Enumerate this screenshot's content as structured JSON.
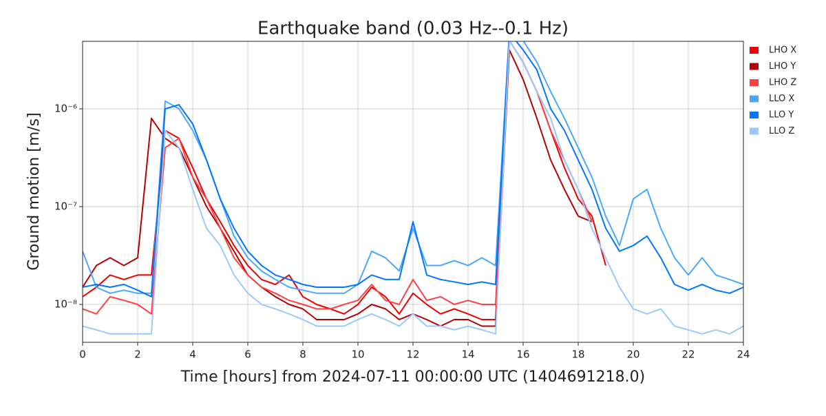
{
  "chart_data": {
    "type": "line",
    "title": "Earthquake band (0.03 Hz--0.1 Hz)",
    "x_label": "Time [hours] from 2024-07-11 00:00:00 UTC (1404691218.0)",
    "y_label": "Ground motion [m/s]",
    "log_y": true,
    "grid": true,
    "legend": "outside-right",
    "xlim": [
      0,
      24
    ],
    "xticks": [
      0,
      2,
      4,
      6,
      8,
      10,
      12,
      14,
      16,
      18,
      20,
      22,
      24
    ],
    "ylim": [
      4.1e-09,
      4.9e-06
    ],
    "yticks": [
      {
        "value": 1e-08,
        "label": "10⁻⁸"
      },
      {
        "value": 1e-07,
        "label": "10⁻⁷"
      },
      {
        "value": 1e-06,
        "label": "10⁻⁶"
      }
    ],
    "x": [
      0,
      0.5,
      1,
      1.5,
      2,
      2.5,
      3,
      3.5,
      4,
      4.5,
      5,
      5.5,
      6,
      6.5,
      7,
      7.5,
      8,
      8.5,
      9,
      9.5,
      10,
      10.5,
      11,
      11.5,
      12,
      12.5,
      13,
      13.5,
      14,
      14.5,
      15,
      15.5,
      16,
      16.5,
      17,
      17.5,
      18,
      18.5,
      19,
      19.5,
      20,
      20.5,
      21,
      21.5,
      22,
      22.5,
      23,
      23.5,
      24
    ],
    "series": [
      {
        "name": "LHO X",
        "color": "#ee0000",
        "values": [
          1.2e-08,
          1.5e-08,
          2e-08,
          1.8e-08,
          2e-08,
          2e-08,
          6e-07,
          5e-07,
          2.5e-07,
          1.2e-07,
          7e-08,
          4e-08,
          2.5e-08,
          1.8e-08,
          1.6e-08,
          2e-08,
          1.2e-08,
          1e-08,
          9e-09,
          8e-09,
          1e-08,
          1.5e-08,
          1.2e-08,
          8e-09,
          1.3e-08,
          1e-08,
          8e-09,
          9e-09,
          8e-09,
          7e-09,
          7e-09,
          5e-06,
          3e-06,
          1.5e-06,
          6e-07,
          2.5e-07,
          1.2e-07,
          8e-08,
          2.5e-08,
          null,
          null,
          null,
          null,
          null,
          null,
          null,
          null,
          null,
          null
        ]
      },
      {
        "name": "LHO Y",
        "color": "#b30000",
        "values": [
          1.5e-08,
          2.5e-08,
          3e-08,
          2.5e-08,
          3e-08,
          8e-07,
          5e-07,
          4e-07,
          2e-07,
          1e-07,
          6e-08,
          3.5e-08,
          2e-08,
          1.5e-08,
          1.2e-08,
          1e-08,
          9e-09,
          7e-09,
          7e-09,
          7e-09,
          8e-09,
          1e-08,
          9e-09,
          7e-09,
          8e-09,
          7e-09,
          6e-09,
          7e-09,
          7e-09,
          6e-09,
          6e-09,
          4e-06,
          2e-06,
          8e-07,
          3e-07,
          1.5e-07,
          8e-08,
          7e-08,
          null,
          null,
          null,
          null,
          null,
          null,
          null,
          null,
          null,
          null,
          null
        ]
      },
      {
        "name": "LHO Z",
        "color": "#ff4040",
        "values": [
          9e-09,
          8e-09,
          1.2e-08,
          1.1e-08,
          1e-08,
          8e-09,
          4e-07,
          5e-07,
          2e-07,
          1.2e-07,
          6e-08,
          3e-08,
          2e-08,
          1.5e-08,
          1.3e-08,
          1.1e-08,
          1e-08,
          9e-09,
          9e-09,
          1e-08,
          1.1e-08,
          1.6e-08,
          1.1e-08,
          1e-08,
          1.8e-08,
          1.1e-08,
          1.2e-08,
          1e-08,
          1.1e-08,
          1e-08,
          1e-08,
          5e-06,
          3e-06,
          1.5e-06,
          6e-07,
          3e-07,
          1.5e-07,
          7e-08,
          null,
          null,
          null,
          null,
          null,
          null,
          null,
          null,
          null,
          null,
          null
        ]
      },
      {
        "name": "LLO X",
        "color": "#4ba6ff",
        "values": [
          3.5e-08,
          1.5e-08,
          1.3e-08,
          1.4e-08,
          1.3e-08,
          1.3e-08,
          1.2e-06,
          1e-06,
          6e-07,
          3e-07,
          1.2e-07,
          5e-08,
          3e-08,
          2.2e-08,
          1.8e-08,
          1.5e-08,
          1.4e-08,
          1.3e-08,
          1.3e-08,
          1.3e-08,
          1.6e-08,
          3.5e-08,
          3e-08,
          2.2e-08,
          6e-08,
          2.5e-08,
          2.5e-08,
          2.8e-08,
          2.5e-08,
          3e-08,
          2.5e-08,
          6e-06,
          5e-06,
          3e-06,
          1.5e-06,
          8e-07,
          4e-07,
          2e-07,
          8e-08,
          4e-08,
          1.2e-07,
          1.5e-07,
          6e-08,
          3e-08,
          2e-08,
          3e-08,
          2e-08,
          1.8e-08,
          1.6e-08
        ]
      },
      {
        "name": "LLO Y",
        "color": "#0076ff",
        "values": [
          1.5e-08,
          1.6e-08,
          1.5e-08,
          1.6e-08,
          1.4e-08,
          1.2e-08,
          1e-06,
          1.1e-06,
          7e-07,
          3e-07,
          1.2e-07,
          6e-08,
          3.5e-08,
          2.5e-08,
          2e-08,
          1.8e-08,
          1.6e-08,
          1.5e-08,
          1.5e-08,
          1.5e-08,
          1.6e-08,
          2e-08,
          1.8e-08,
          1.8e-08,
          7e-08,
          2e-08,
          1.8e-08,
          1.7e-08,
          1.6e-08,
          1.7e-08,
          1.6e-08,
          6e-06,
          4e-06,
          2.5e-06,
          1e-06,
          6e-07,
          3e-07,
          1.5e-07,
          6e-08,
          3.5e-08,
          4e-08,
          5e-08,
          3e-08,
          1.6e-08,
          1.4e-08,
          1.6e-08,
          1.4e-08,
          1.3e-08,
          1.5e-08
        ]
      },
      {
        "name": "LLO Z",
        "color": "#9ac8ff",
        "values": [
          6e-09,
          5.5e-09,
          5e-09,
          5e-09,
          5e-09,
          5e-09,
          6e-07,
          4e-07,
          1.5e-07,
          6e-08,
          4e-08,
          2e-08,
          1.3e-08,
          1e-08,
          9e-09,
          8e-09,
          7e-09,
          6e-09,
          6e-09,
          6e-09,
          7e-09,
          8e-09,
          7e-09,
          6e-09,
          8e-09,
          6e-09,
          6e-09,
          5.5e-09,
          6e-09,
          5.5e-09,
          5e-09,
          5e-06,
          3e-06,
          1.5e-06,
          8e-07,
          3e-07,
          1.5e-07,
          6e-08,
          3e-08,
          1.5e-08,
          9e-09,
          8e-09,
          9e-09,
          6e-09,
          5.5e-09,
          5e-09,
          5.5e-09,
          5e-09,
          6e-09
        ]
      }
    ]
  }
}
